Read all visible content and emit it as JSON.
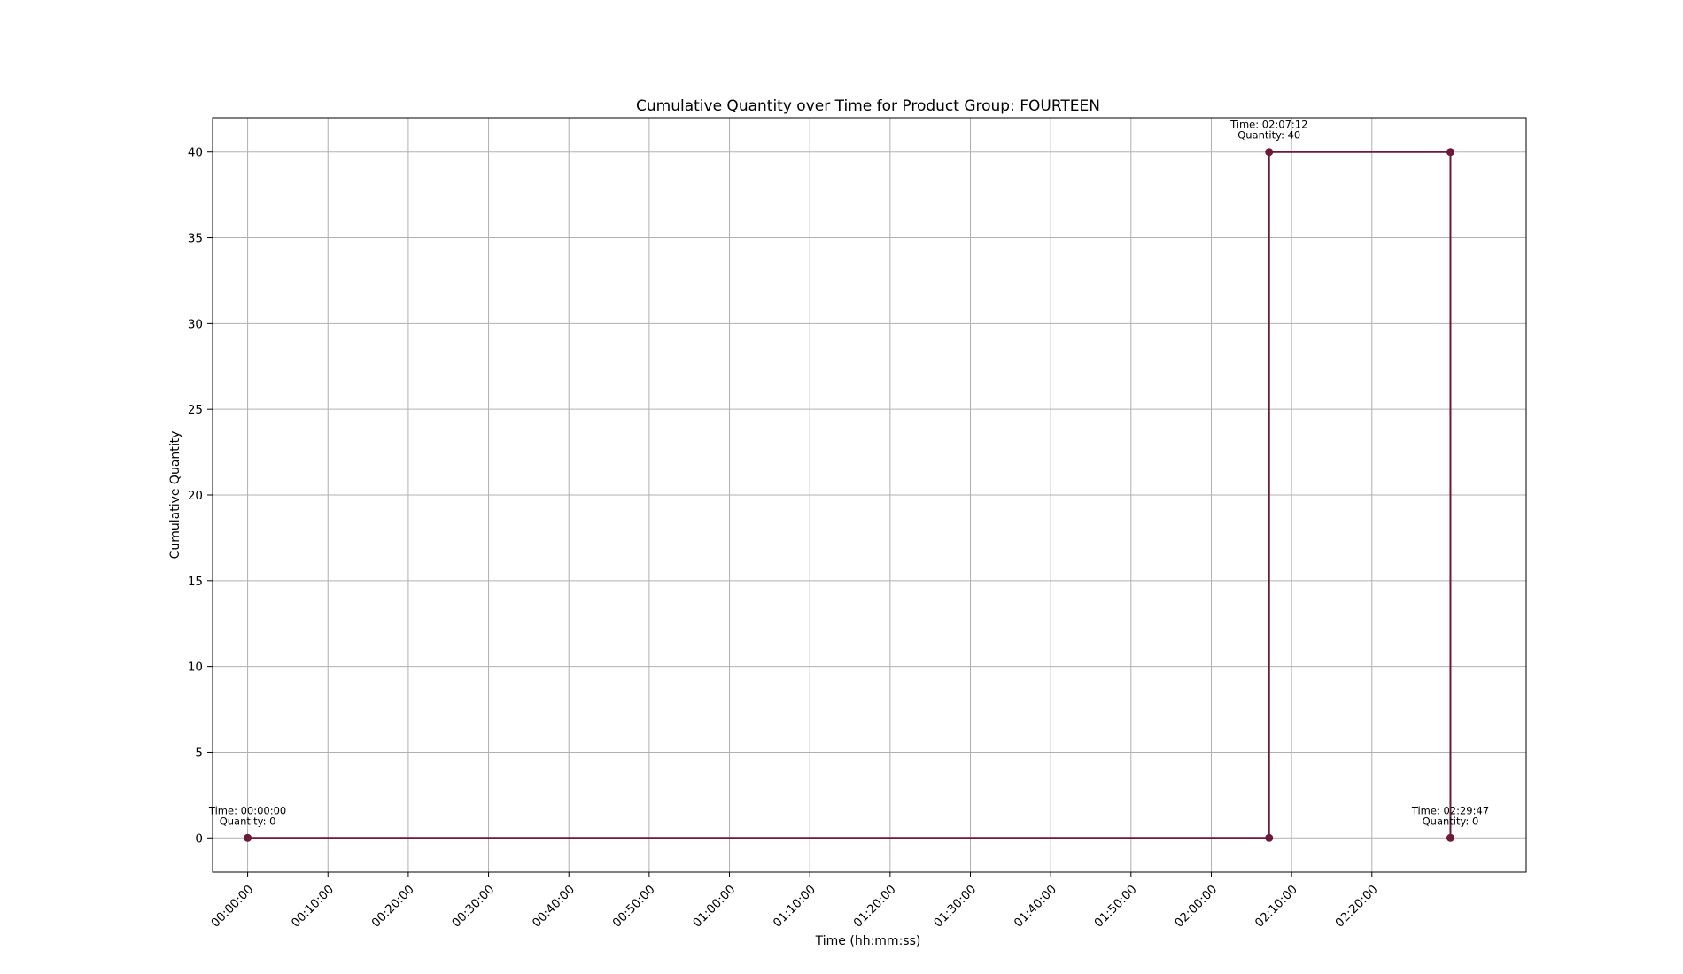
{
  "chart_data": {
    "type": "line",
    "title": "Cumulative Quantity over Time for Product Group: FOURTEEN",
    "xlabel": "Time (hh:mm:ss)",
    "ylabel": "Cumulative Quantity",
    "x_unit": "hh:mm:ss",
    "xlim": [
      "-00:04:22",
      "02:39:13"
    ],
    "ylim": [
      -2,
      42
    ],
    "grid": true,
    "series_color": "#6b1a3a",
    "x_ticks": [
      "00:00:00",
      "00:10:00",
      "00:20:00",
      "00:30:00",
      "00:40:00",
      "00:50:00",
      "01:00:00",
      "01:10:00",
      "01:20:00",
      "01:30:00",
      "01:40:00",
      "01:50:00",
      "02:00:00",
      "02:10:00",
      "02:20:00"
    ],
    "y_ticks": [
      0,
      5,
      10,
      15,
      20,
      25,
      30,
      35,
      40
    ],
    "series": [
      {
        "points": [
          {
            "x": "00:00:00",
            "y": 0
          },
          {
            "x": "02:07:12",
            "y": 0
          },
          {
            "x": "02:07:12",
            "y": 40
          },
          {
            "x": "02:29:47",
            "y": 40
          },
          {
            "x": "02:29:47",
            "y": 0
          }
        ]
      }
    ],
    "annotations": [
      {
        "x": "00:00:00",
        "y": 0,
        "line1": "Time: 00:00:00",
        "line2": "Quantity: 0"
      },
      {
        "x": "02:07:12",
        "y": 40,
        "line1": "Time: 02:07:12",
        "line2": "Quantity: 40"
      },
      {
        "x": "02:29:47",
        "y": 0,
        "line1": "Time: 02:29:47",
        "line2": "Quantity: 0"
      }
    ]
  }
}
